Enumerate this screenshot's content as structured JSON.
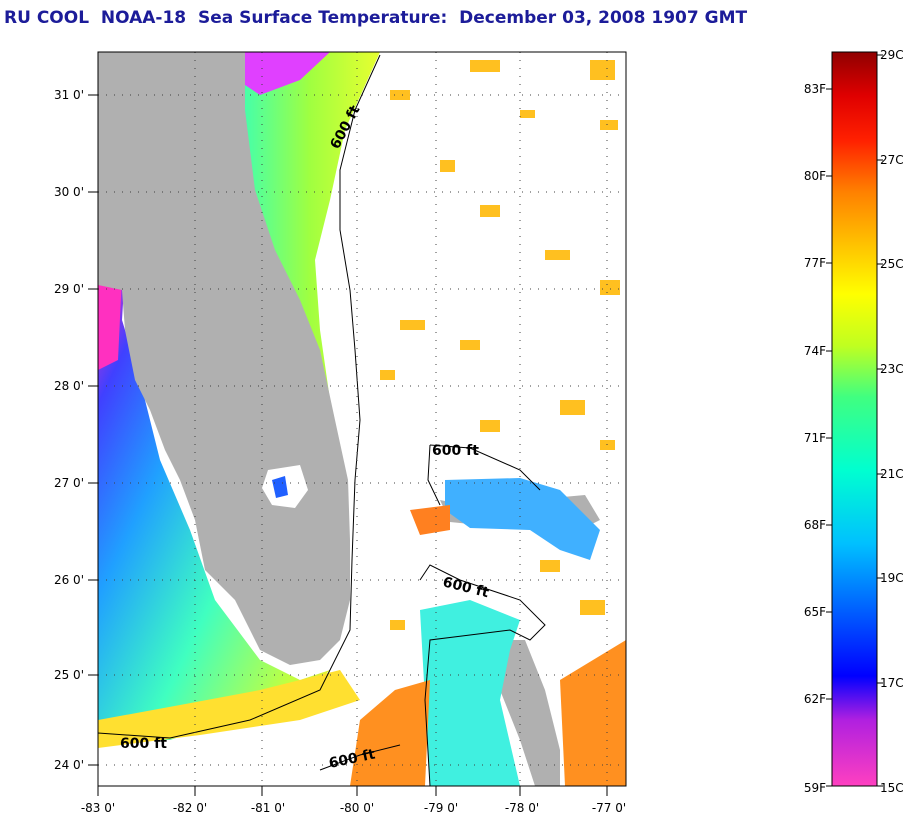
{
  "title": "RU COOL  NOAA-18  Sea Surface Temperature:  December 03, 2008 1907 GMT",
  "map": {
    "lat_labels": [
      "31 0'",
      "30 0'",
      "29 0'",
      "28 0'",
      "27 0'",
      "26 0'",
      "25 0'",
      "24 0'"
    ],
    "lon_labels": [
      "-83 0'",
      "-82 0'",
      "-81 0'",
      "-80 0'",
      "-79 0'",
      "-78 0'",
      "-77 0'"
    ],
    "contour_labels": [
      "600 ft",
      "600 ft",
      "600 ft",
      "600 ft",
      "600 ft"
    ],
    "colors": {
      "land": "#b0b0b0",
      "ocean_cloud": "#ffffff",
      "grid": "#404040"
    }
  },
  "colorbar": {
    "f_labels": [
      "83F",
      "80F",
      "77F",
      "74F",
      "71F",
      "68F",
      "65F",
      "62F",
      "59F"
    ],
    "c_labels": [
      "29C",
      "27C",
      "25C",
      "23C",
      "21C",
      "19C",
      "17C",
      "15C"
    ],
    "gradient_stops": [
      "#ff40c0",
      "#b020e0",
      "#0000ff",
      "#0060ff",
      "#00c0ff",
      "#00ffd0",
      "#40ff80",
      "#c0ff20",
      "#ffff00",
      "#ffc000",
      "#ff8000",
      "#ff2000",
      "#e00000",
      "#900000"
    ]
  }
}
